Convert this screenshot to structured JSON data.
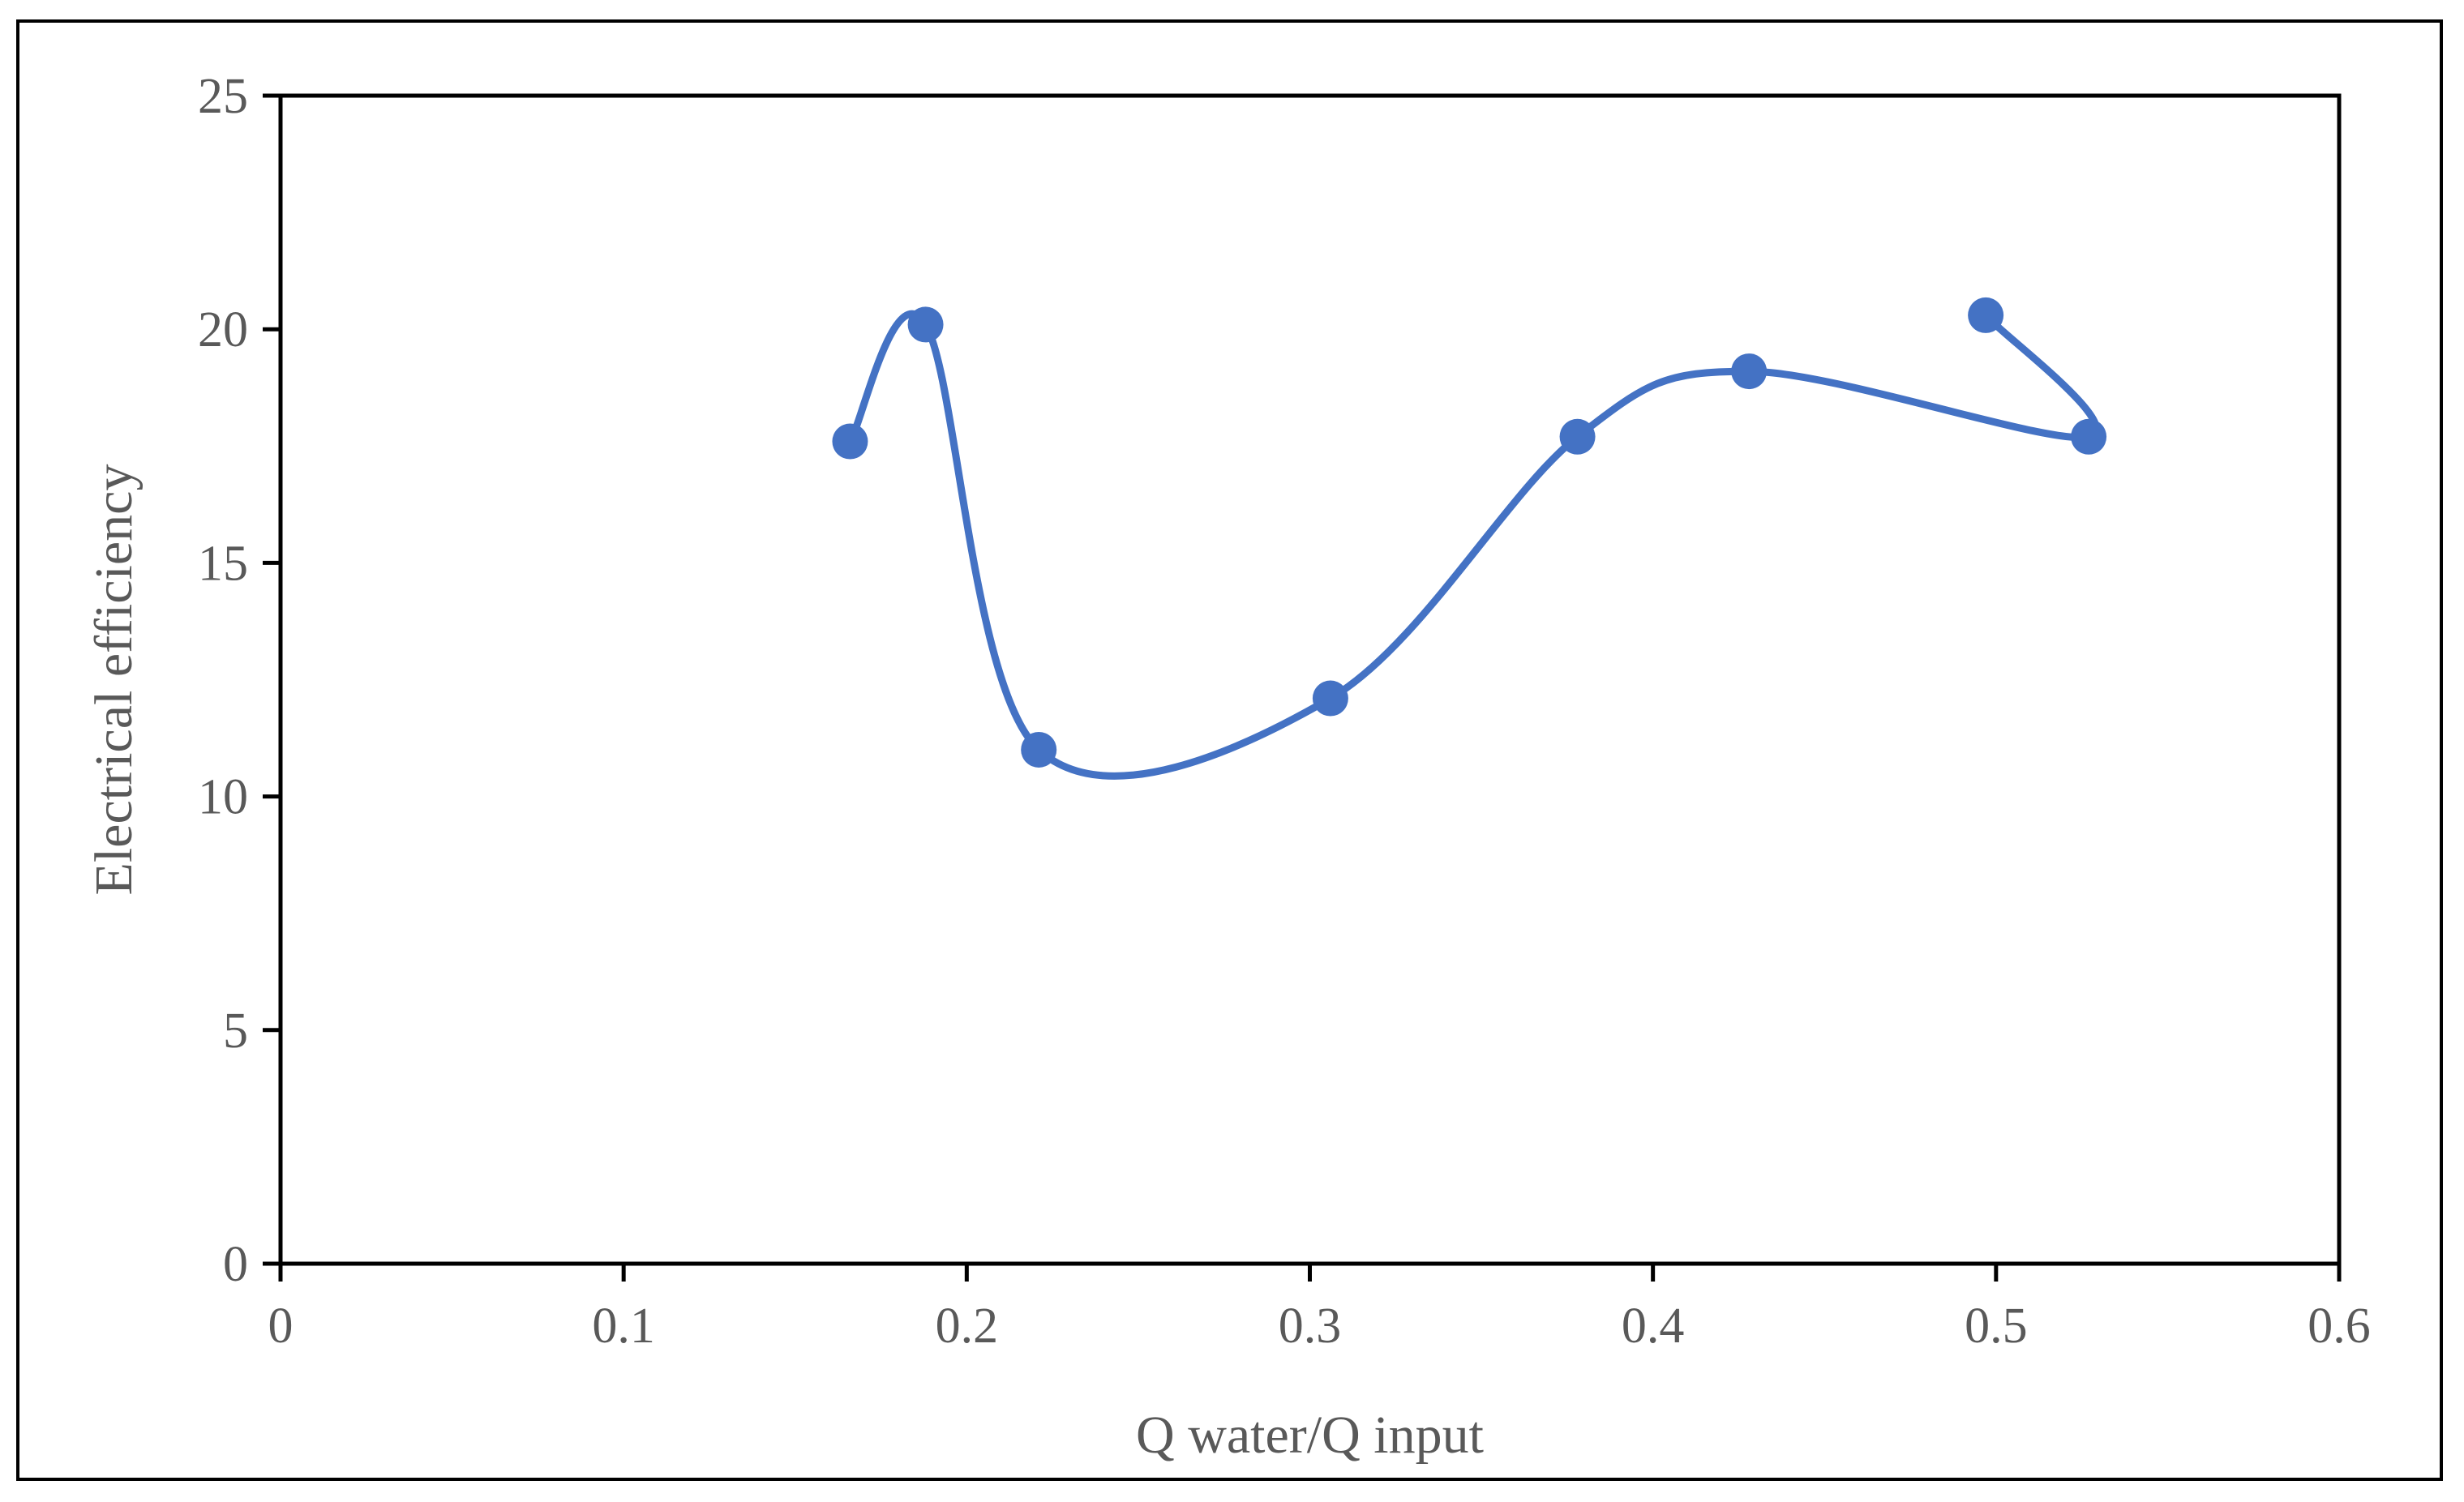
{
  "chart_data": {
    "type": "scatter",
    "title": "",
    "xlabel": "Q water/Q input",
    "ylabel": "Electrical efficiency",
    "xlim": [
      0,
      0.6
    ],
    "ylim": [
      0,
      25
    ],
    "x_ticks": [
      "0",
      "0.1",
      "0.2",
      "0.3",
      "0.4",
      "0.5",
      "0.6"
    ],
    "y_ticks": [
      "0",
      "5",
      "10",
      "15",
      "20",
      "25"
    ],
    "grid": false,
    "legend": "none",
    "series": [
      {
        "name": "Electrical efficiency",
        "color": "#4472C4",
        "smooth": true,
        "markers": true,
        "points": [
          {
            "x": 0.166,
            "y": 17.6
          },
          {
            "x": 0.188,
            "y": 20.1
          },
          {
            "x": 0.221,
            "y": 11.0
          },
          {
            "x": 0.306,
            "y": 12.1
          },
          {
            "x": 0.378,
            "y": 17.7
          },
          {
            "x": 0.428,
            "y": 19.1
          },
          {
            "x": 0.527,
            "y": 17.7
          },
          {
            "x": 0.497,
            "y": 20.3
          }
        ]
      }
    ]
  }
}
